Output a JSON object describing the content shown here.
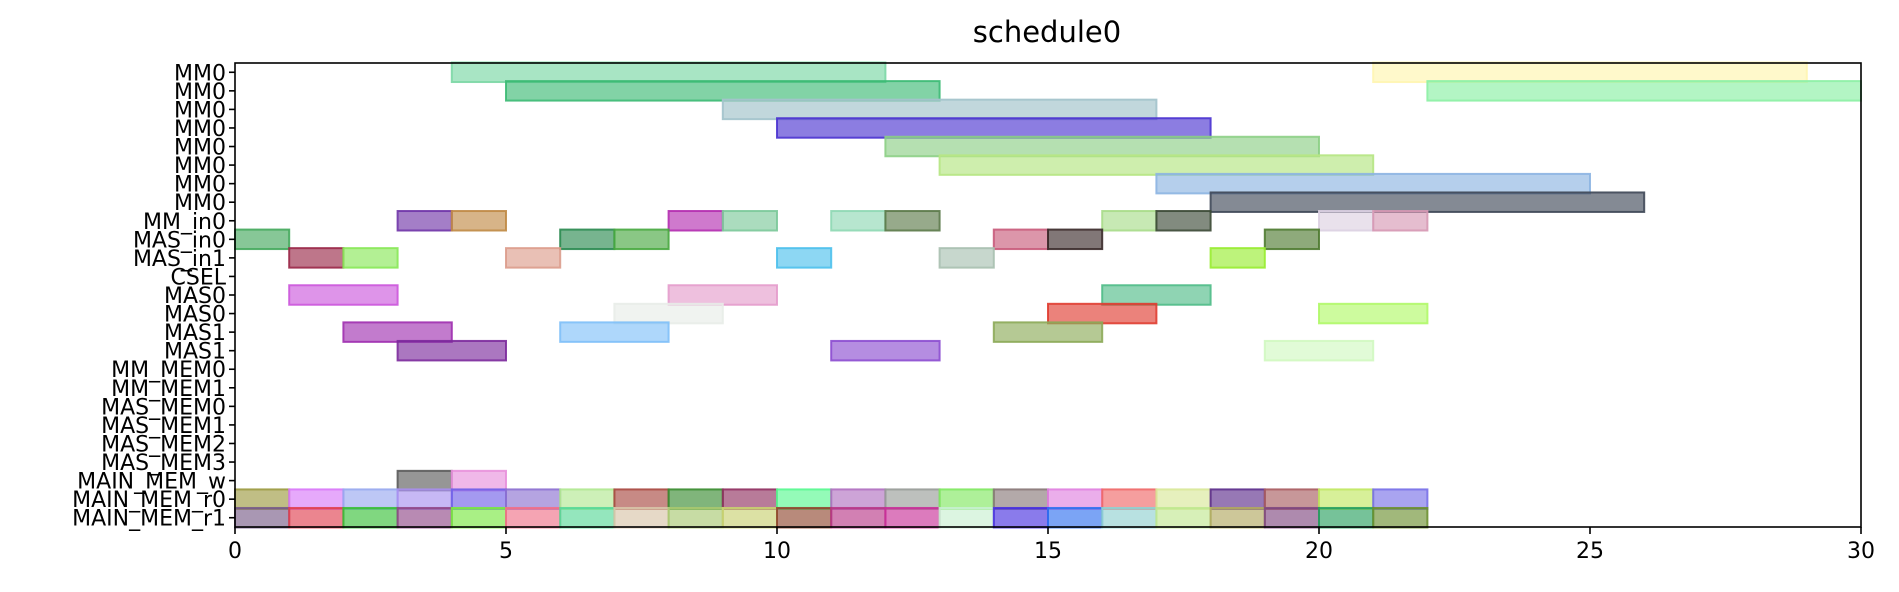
{
  "chart_data": {
    "type": "gantt",
    "title": "schedule0",
    "xlabel": "",
    "ylabel": "",
    "xlim": [
      0,
      30
    ],
    "x_ticks": [
      0,
      5,
      10,
      15,
      20,
      25,
      30
    ],
    "rows": [
      "MM0",
      "MM0",
      "MM0",
      "MM0",
      "MM0",
      "MM0",
      "MM0",
      "MM0",
      "MM_in0",
      "MAS_in0",
      "MAS_in1",
      "CSEL",
      "MAS0",
      "MAS0",
      "MAS1",
      "MAS1",
      "MM_MEM0",
      "MM_MEM1",
      "MAS_MEM0",
      "MAS_MEM1",
      "MAS_MEM2",
      "MAS_MEM3",
      "MAIN_MEM_w",
      "MAIN_MEM_r0",
      "MAIN_MEM_r1"
    ],
    "tasks": [
      {
        "row": 0,
        "start": 4,
        "end": 12,
        "color": "#7fd8a8",
        "alpha": 0.8
      },
      {
        "row": 0,
        "start": 21,
        "end": 29,
        "color": "#fff6b3",
        "alpha": 0.8
      },
      {
        "row": 1,
        "start": 5,
        "end": 13,
        "color": "#3cba74",
        "alpha": 0.75
      },
      {
        "row": 1,
        "start": 22,
        "end": 30,
        "color": "#8ff0a8",
        "alpha": 0.8
      },
      {
        "row": 2,
        "start": 9,
        "end": 17,
        "color": "#a4c4cc",
        "alpha": 0.8
      },
      {
        "row": 3,
        "start": 10,
        "end": 18,
        "color": "#4b34d0",
        "alpha": 0.75
      },
      {
        "row": 4,
        "start": 12,
        "end": 20,
        "color": "#8ccf85",
        "alpha": 0.75
      },
      {
        "row": 5,
        "start": 13,
        "end": 21,
        "color": "#b7e686",
        "alpha": 0.8
      },
      {
        "row": 6,
        "start": 17,
        "end": 25,
        "color": "#8cb4e2",
        "alpha": 0.75
      },
      {
        "row": 7,
        "start": 18,
        "end": 26,
        "color": "#3f4858",
        "alpha": 0.75
      },
      {
        "row": 8,
        "start": 3,
        "end": 4,
        "color": "#7035a8",
        "alpha": 0.75
      },
      {
        "row": 8,
        "start": 4,
        "end": 5,
        "color": "#c08a45",
        "alpha": 0.75
      },
      {
        "row": 8,
        "start": 8,
        "end": 9,
        "color": "#b42db0",
        "alpha": 0.75
      },
      {
        "row": 8,
        "start": 9,
        "end": 10,
        "color": "#7cc99a",
        "alpha": 0.75
      },
      {
        "row": 8,
        "start": 11,
        "end": 12,
        "color": "#8fd8b4",
        "alpha": 0.75
      },
      {
        "row": 8,
        "start": 12,
        "end": 13,
        "color": "#5c7a4a",
        "alpha": 0.75
      },
      {
        "row": 8,
        "start": 16,
        "end": 17,
        "color": "#a8dc8a",
        "alpha": 0.75
      },
      {
        "row": 8,
        "start": 17,
        "end": 18,
        "color": "#3c4a36",
        "alpha": 0.75
      },
      {
        "row": 8,
        "start": 20,
        "end": 21,
        "color": "#dcd0e2",
        "alpha": 0.75
      },
      {
        "row": 8,
        "start": 21,
        "end": 22,
        "color": "#d698b4",
        "alpha": 0.75
      },
      {
        "row": 9,
        "start": 0,
        "end": 1,
        "color": "#44a85c",
        "alpha": 0.75
      },
      {
        "row": 9,
        "start": 6,
        "end": 7,
        "color": "#2a8a50",
        "alpha": 0.75
      },
      {
        "row": 9,
        "start": 7,
        "end": 8,
        "color": "#48a840",
        "alpha": 0.75
      },
      {
        "row": 9,
        "start": 14,
        "end": 15,
        "color": "#c85a7a",
        "alpha": 0.75
      },
      {
        "row": 9,
        "start": 15,
        "end": 16,
        "color": "#3a2a2a",
        "alpha": 0.75
      },
      {
        "row": 9,
        "start": 19,
        "end": 20,
        "color": "#4e7a30",
        "alpha": 0.75
      },
      {
        "row": 10,
        "start": 1,
        "end": 2,
        "color": "#9a2848",
        "alpha": 0.75
      },
      {
        "row": 10,
        "start": 2,
        "end": 3,
        "color": "#88e858",
        "alpha": 0.75
      },
      {
        "row": 10,
        "start": 5,
        "end": 6,
        "color": "#dc9c8c",
        "alpha": 0.75
      },
      {
        "row": 10,
        "start": 10,
        "end": 11,
        "color": "#4cc0ec",
        "alpha": 0.75
      },
      {
        "row": 10,
        "start": 13,
        "end": 14,
        "color": "#a8c0b0",
        "alpha": 0.75
      },
      {
        "row": 10,
        "start": 18,
        "end": 19,
        "color": "#98ec30",
        "alpha": 0.75
      },
      {
        "row": 12,
        "start": 1,
        "end": 3,
        "color": "#cc58dc",
        "alpha": 0.75
      },
      {
        "row": 12,
        "start": 8,
        "end": 10,
        "color": "#e49ccc",
        "alpha": 0.75
      },
      {
        "row": 12,
        "start": 16,
        "end": 18,
        "color": "#50bc88",
        "alpha": 0.75
      },
      {
        "row": 13,
        "start": 7,
        "end": 9,
        "color": "#e8ece8",
        "alpha": 0.75
      },
      {
        "row": 13,
        "start": 15,
        "end": 17,
        "color": "#e03c30",
        "alpha": 0.75
      },
      {
        "row": 13,
        "start": 20,
        "end": 22,
        "color": "#b0f868",
        "alpha": 0.75
      },
      {
        "row": 14,
        "start": 2,
        "end": 4,
        "color": "#a030b0",
        "alpha": 0.75
      },
      {
        "row": 14,
        "start": 6,
        "end": 8,
        "color": "#80c0f8",
        "alpha": 0.75
      },
      {
        "row": 14,
        "start": 14,
        "end": 16,
        "color": "#8caa58",
        "alpha": 0.75
      },
      {
        "row": 15,
        "start": 3,
        "end": 5,
        "color": "#7c2a9c",
        "alpha": 0.75
      },
      {
        "row": 15,
        "start": 11,
        "end": 13,
        "color": "#8c4cd0",
        "alpha": 0.75
      },
      {
        "row": 15,
        "start": 19,
        "end": 21,
        "color": "#d0f8c0",
        "alpha": 0.75
      },
      {
        "row": 22,
        "start": 3,
        "end": 4,
        "color": "#5a5a5a",
        "alpha": 0.75
      },
      {
        "row": 22,
        "start": 4,
        "end": 5,
        "color": "#e890dc",
        "alpha": 0.75
      },
      {
        "row": 23,
        "start": 0,
        "end": 1,
        "color": "#9c9a40",
        "alpha": 0.75
      },
      {
        "row": 23,
        "start": 1,
        "end": 2,
        "color": "#d878f8",
        "alpha": 0.75
      },
      {
        "row": 23,
        "start": 2,
        "end": 3,
        "color": "#98a8f0",
        "alpha": 0.75
      },
      {
        "row": 23,
        "start": 3,
        "end": 4,
        "color": "#a890f0",
        "alpha": 0.75
      },
      {
        "row": 23,
        "start": 4,
        "end": 5,
        "color": "#7060e8",
        "alpha": 0.75
      },
      {
        "row": 23,
        "start": 5,
        "end": 6,
        "color": "#8c70d0",
        "alpha": 0.75
      },
      {
        "row": 23,
        "start": 6,
        "end": 7,
        "color": "#b0e890",
        "alpha": 0.75
      },
      {
        "row": 23,
        "start": 7,
        "end": 8,
        "color": "#a84840",
        "alpha": 0.75
      },
      {
        "row": 23,
        "start": 8,
        "end": 9,
        "color": "#388c30",
        "alpha": 0.75
      },
      {
        "row": 23,
        "start": 9,
        "end": 10,
        "color": "#903060",
        "alpha": 0.75
      },
      {
        "row": 23,
        "start": 10,
        "end": 11,
        "color": "#58f890",
        "alpha": 0.75
      },
      {
        "row": 23,
        "start": 11,
        "end": 12,
        "color": "#b070c0",
        "alpha": 0.75
      },
      {
        "row": 23,
        "start": 12,
        "end": 13,
        "color": "#989c98",
        "alpha": 0.75
      },
      {
        "row": 23,
        "start": 13,
        "end": 14,
        "color": "#80e860",
        "alpha": 0.75
      },
      {
        "row": 23,
        "start": 14,
        "end": 15,
        "color": "#887878",
        "alpha": 0.75
      },
      {
        "row": 23,
        "start": 15,
        "end": 16,
        "color": "#e080e0",
        "alpha": 0.75
      },
      {
        "row": 23,
        "start": 16,
        "end": 17,
        "color": "#f06868",
        "alpha": 0.75
      },
      {
        "row": 23,
        "start": 17,
        "end": 18,
        "color": "#d8e898",
        "alpha": 0.75
      },
      {
        "row": 23,
        "start": 18,
        "end": 19,
        "color": "#5c2c8c",
        "alpha": 0.75
      },
      {
        "row": 23,
        "start": 19,
        "end": 20,
        "color": "#a85c60",
        "alpha": 0.75
      },
      {
        "row": 23,
        "start": 20,
        "end": 21,
        "color": "#c0e860",
        "alpha": 0.75
      },
      {
        "row": 23,
        "start": 21,
        "end": 22,
        "color": "#7870e8",
        "alpha": 0.75
      },
      {
        "row": 24,
        "start": 0,
        "end": 1,
        "color": "#785c88",
        "alpha": 0.75
      },
      {
        "row": 24,
        "start": 1,
        "end": 2,
        "color": "#e04050",
        "alpha": 0.75
      },
      {
        "row": 24,
        "start": 2,
        "end": 3,
        "color": "#38c038",
        "alpha": 0.75
      },
      {
        "row": 24,
        "start": 3,
        "end": 4,
        "color": "#904888",
        "alpha": 0.75
      },
      {
        "row": 24,
        "start": 4,
        "end": 5,
        "color": "#78e840",
        "alpha": 0.75
      },
      {
        "row": 24,
        "start": 5,
        "end": 6,
        "color": "#f07088",
        "alpha": 0.75
      },
      {
        "row": 24,
        "start": 6,
        "end": 7,
        "color": "#58d898",
        "alpha": 0.75
      },
      {
        "row": 24,
        "start": 7,
        "end": 8,
        "color": "#d8c4a8",
        "alpha": 0.75
      },
      {
        "row": 24,
        "start": 8,
        "end": 9,
        "color": "#a8c870",
        "alpha": 0.75
      },
      {
        "row": 24,
        "start": 9,
        "end": 10,
        "color": "#c8d070",
        "alpha": 0.75
      },
      {
        "row": 24,
        "start": 10,
        "end": 11,
        "color": "#904830",
        "alpha": 0.75
      },
      {
        "row": 24,
        "start": 11,
        "end": 12,
        "color": "#b83888",
        "alpha": 0.75
      },
      {
        "row": 24,
        "start": 12,
        "end": 13,
        "color": "#c83098",
        "alpha": 0.75
      },
      {
        "row": 24,
        "start": 13,
        "end": 14,
        "color": "#c8f0d0",
        "alpha": 0.75
      },
      {
        "row": 24,
        "start": 14,
        "end": 15,
        "color": "#4830e0",
        "alpha": 0.75
      },
      {
        "row": 24,
        "start": 15,
        "end": 16,
        "color": "#3070f0",
        "alpha": 0.75
      },
      {
        "row": 24,
        "start": 16,
        "end": 17,
        "color": "#90d0d0",
        "alpha": 0.75
      },
      {
        "row": 24,
        "start": 17,
        "end": 18,
        "color": "#c0e890",
        "alpha": 0.75
      },
      {
        "row": 24,
        "start": 18,
        "end": 19,
        "color": "#b0a860",
        "alpha": 0.75
      },
      {
        "row": 24,
        "start": 19,
        "end": 20,
        "color": "#804880",
        "alpha": 0.75
      },
      {
        "row": 24,
        "start": 20,
        "end": 21,
        "color": "#28a060",
        "alpha": 0.75
      },
      {
        "row": 24,
        "start": 21,
        "end": 22,
        "color": "#6c9030",
        "alpha": 0.75
      }
    ],
    "grid": false,
    "legend": "none"
  }
}
